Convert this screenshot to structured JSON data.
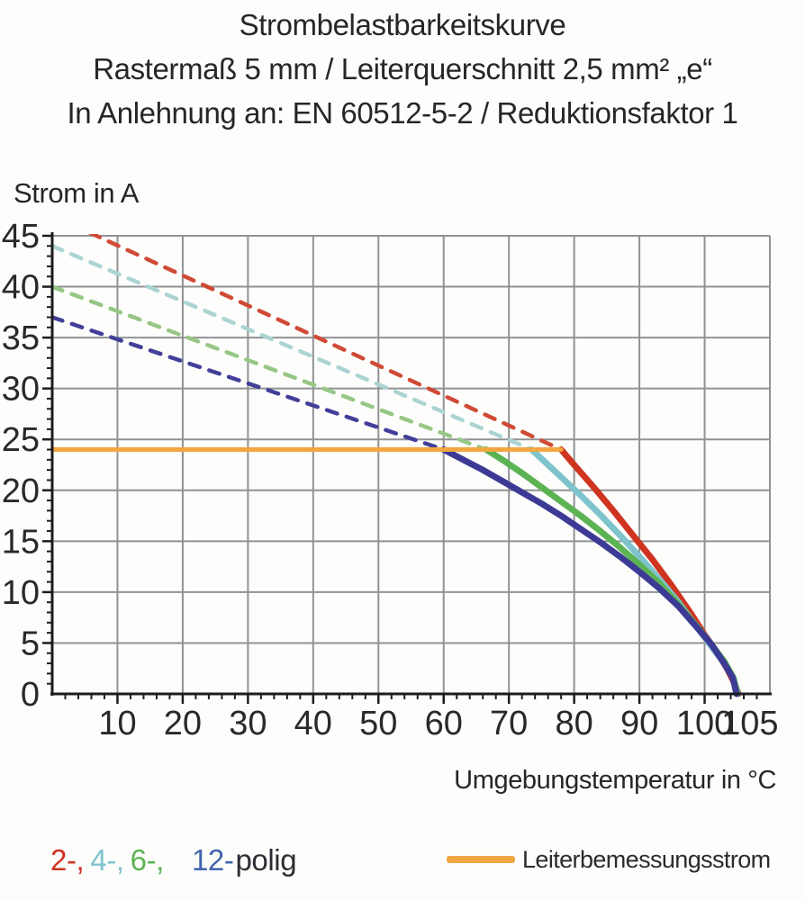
{
  "title": {
    "line1": "Strombelastbarkeitskurve",
    "line2": "Rastermaß 5 mm / Leiterquerschnitt 2,5 mm² „e“",
    "line3": "In Anlehnung an: EN 60512-5-2 / Reduktionsfaktor 1"
  },
  "chart_data": {
    "type": "line",
    "title": "Strombelastbarkeitskurve",
    "xlabel": "Umgebungstemperatur in °C",
    "ylabel": "Strom in A",
    "xlim": [
      0,
      110
    ],
    "ylim": [
      0,
      45
    ],
    "grid": true,
    "legend_position": "bottom",
    "x_major_ticks": [
      10,
      20,
      30,
      40,
      50,
      60,
      70,
      80,
      90,
      100,
      105
    ],
    "y_major_ticks": [
      0,
      5,
      10,
      15,
      20,
      25,
      30,
      35,
      40,
      45
    ],
    "x_gridlines": [
      10,
      20,
      30,
      40,
      50,
      60,
      70,
      80,
      90,
      100
    ],
    "y_gridlines": [
      5,
      10,
      15,
      20,
      25,
      30,
      35,
      40,
      45
    ],
    "x_minor_step": 2,
    "y_minor_step": 1,
    "style": {
      "grid_color": "#909294",
      "axis_color": "#1d1d1f",
      "tick_label_size": 38
    },
    "rated_line": {
      "name": "Leiterbemessungsstrom",
      "current_A": 24,
      "color": "#f2a640",
      "points": [
        [
          0,
          24
        ],
        [
          78,
          24
        ]
      ]
    },
    "series": [
      {
        "name": "2-polig",
        "poles": 2,
        "color_solid": "#cf3420",
        "color_dashed": "#d04a36",
        "dashed_line": [
          [
            0,
            47
          ],
          [
            78,
            24
          ]
        ],
        "solid_curve": [
          [
            78,
            24
          ],
          [
            80,
            22.5
          ],
          [
            83,
            20.3
          ],
          [
            86,
            18.0
          ],
          [
            89,
            15.6
          ],
          [
            92,
            13.2
          ],
          [
            95,
            10.6
          ],
          [
            98,
            7.8
          ],
          [
            100,
            5.8
          ],
          [
            102,
            4.0
          ],
          [
            103.5,
            2.4
          ],
          [
            104.6,
            1.0
          ],
          [
            105.2,
            0
          ]
        ]
      },
      {
        "name": "4-polig",
        "poles": 4,
        "color_solid": "#7fc4cc",
        "color_dashed": "#abd4d3",
        "dashed_line": [
          [
            0,
            44
          ],
          [
            73.5,
            24
          ]
        ],
        "solid_curve": [
          [
            73.5,
            24
          ],
          [
            75,
            23.1
          ],
          [
            78,
            21.3
          ],
          [
            81,
            19.5
          ],
          [
            84,
            17.6
          ],
          [
            87,
            15.6
          ],
          [
            90,
            13.5
          ],
          [
            93,
            11.3
          ],
          [
            96,
            9.0
          ],
          [
            99,
            6.4
          ],
          [
            101,
            4.7
          ],
          [
            103,
            3.0
          ],
          [
            104.5,
            1.4
          ],
          [
            105.1,
            0
          ]
        ]
      },
      {
        "name": "6-polig",
        "poles": 6,
        "color_solid": "#5cb353",
        "color_dashed": "#97c785",
        "dashed_line": [
          [
            0,
            40
          ],
          [
            66.5,
            24
          ]
        ],
        "solid_curve": [
          [
            66.5,
            24
          ],
          [
            69,
            23.0
          ],
          [
            72,
            21.7
          ],
          [
            75,
            20.3
          ],
          [
            78,
            18.9
          ],
          [
            81,
            17.5
          ],
          [
            84,
            16.0
          ],
          [
            87,
            14.4
          ],
          [
            90,
            12.7
          ],
          [
            93,
            10.9
          ],
          [
            96,
            8.8
          ],
          [
            99,
            6.5
          ],
          [
            101,
            4.9
          ],
          [
            103,
            3.2
          ],
          [
            104.4,
            1.6
          ],
          [
            105.0,
            0
          ]
        ]
      },
      {
        "name": "12-polig",
        "poles": 12,
        "color_solid": "#3d3a96",
        "color_dashed": "#413f99",
        "dashed_line": [
          [
            0,
            37
          ],
          [
            60,
            24
          ]
        ],
        "solid_curve": [
          [
            60,
            24
          ],
          [
            63,
            23.0
          ],
          [
            66,
            22.0
          ],
          [
            69,
            20.9
          ],
          [
            72,
            19.8
          ],
          [
            75,
            18.7
          ],
          [
            78,
            17.5
          ],
          [
            81,
            16.2
          ],
          [
            84,
            14.9
          ],
          [
            87,
            13.5
          ],
          [
            90,
            12.0
          ],
          [
            93,
            10.4
          ],
          [
            96,
            8.6
          ],
          [
            99,
            6.4
          ],
          [
            101,
            4.9
          ],
          [
            103,
            3.0
          ],
          [
            104.3,
            1.6
          ],
          [
            104.9,
            0
          ]
        ]
      }
    ]
  },
  "legend": {
    "poles": [
      {
        "label": "2-,",
        "color": "#cf3420"
      },
      {
        "label": "4-,",
        "color": "#7fc4cc"
      },
      {
        "label": "6-,",
        "color": "#5cb353"
      },
      {
        "label": "12-",
        "color": "#4164ad"
      },
      {
        "label": "polig",
        "color": "#2c2c33"
      }
    ],
    "rated": {
      "label": "Leiterbemessungsstrom",
      "swatch_color": "#f2a640"
    }
  }
}
